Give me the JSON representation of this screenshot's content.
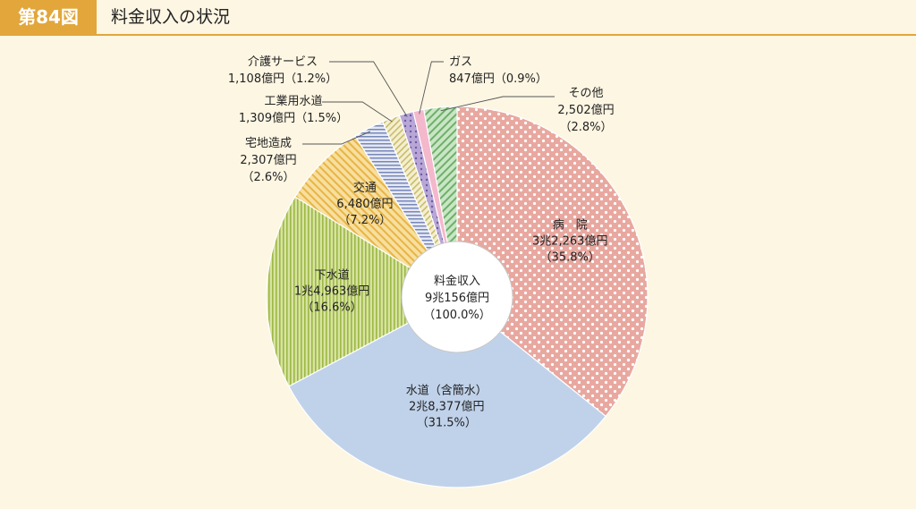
{
  "header": {
    "figure_no": "第84図",
    "title": "料金収入の状況"
  },
  "chart_data": {
    "type": "pie",
    "title": "料金収入の状況",
    "center": {
      "line1": "料金収入",
      "line2": "9兆156億円",
      "line3": "（100.0%）"
    },
    "slices": [
      {
        "name": "病　院",
        "value_text": "3兆2,263億円",
        "pct_text": "（35.8%）",
        "percent": 35.8,
        "color": "#e8a8a0",
        "pattern": "dots"
      },
      {
        "name": "水道（含簡水）",
        "value_text": "2兆8,377億円",
        "pct_text": "（31.5%）",
        "percent": 31.5,
        "color": "#c0d2ea",
        "pattern": "solid"
      },
      {
        "name": "下水道",
        "value_text": "1兆4,963億円",
        "pct_text": "（16.6%）",
        "percent": 16.6,
        "color": "#bcd26e",
        "pattern": "vlines"
      },
      {
        "name": "交通",
        "value_text": "6,480億円",
        "pct_text": "（7.2%）",
        "percent": 7.2,
        "color": "#f1ca6e",
        "pattern": "diag"
      },
      {
        "name": "宅地造成",
        "value_text": "2,307億円",
        "pct_text": "（2.6%）",
        "percent": 2.6,
        "color": "#a8b4d8",
        "pattern": "hlines"
      },
      {
        "name": "工業用水道",
        "value_text": "1,309億円",
        "pct_text": "（1.5%）",
        "percent": 1.5,
        "color": "#e6dca4",
        "pattern": "diag2"
      },
      {
        "name": "介護サービス",
        "value_text": "1,108億円",
        "pct_text": "（1.2%）",
        "percent": 1.2,
        "color": "#b7a6d6",
        "pattern": "dots2"
      },
      {
        "name": "ガス",
        "value_text": "847億円",
        "pct_text": "（0.9%）",
        "percent": 0.9,
        "color": "#f4b8cc",
        "pattern": "solid"
      },
      {
        "name": "その他",
        "value_text": "2,502億円",
        "pct_text": "（2.8%）",
        "percent": 2.8,
        "color": "#9fcf9c",
        "pattern": "diag3"
      }
    ]
  }
}
